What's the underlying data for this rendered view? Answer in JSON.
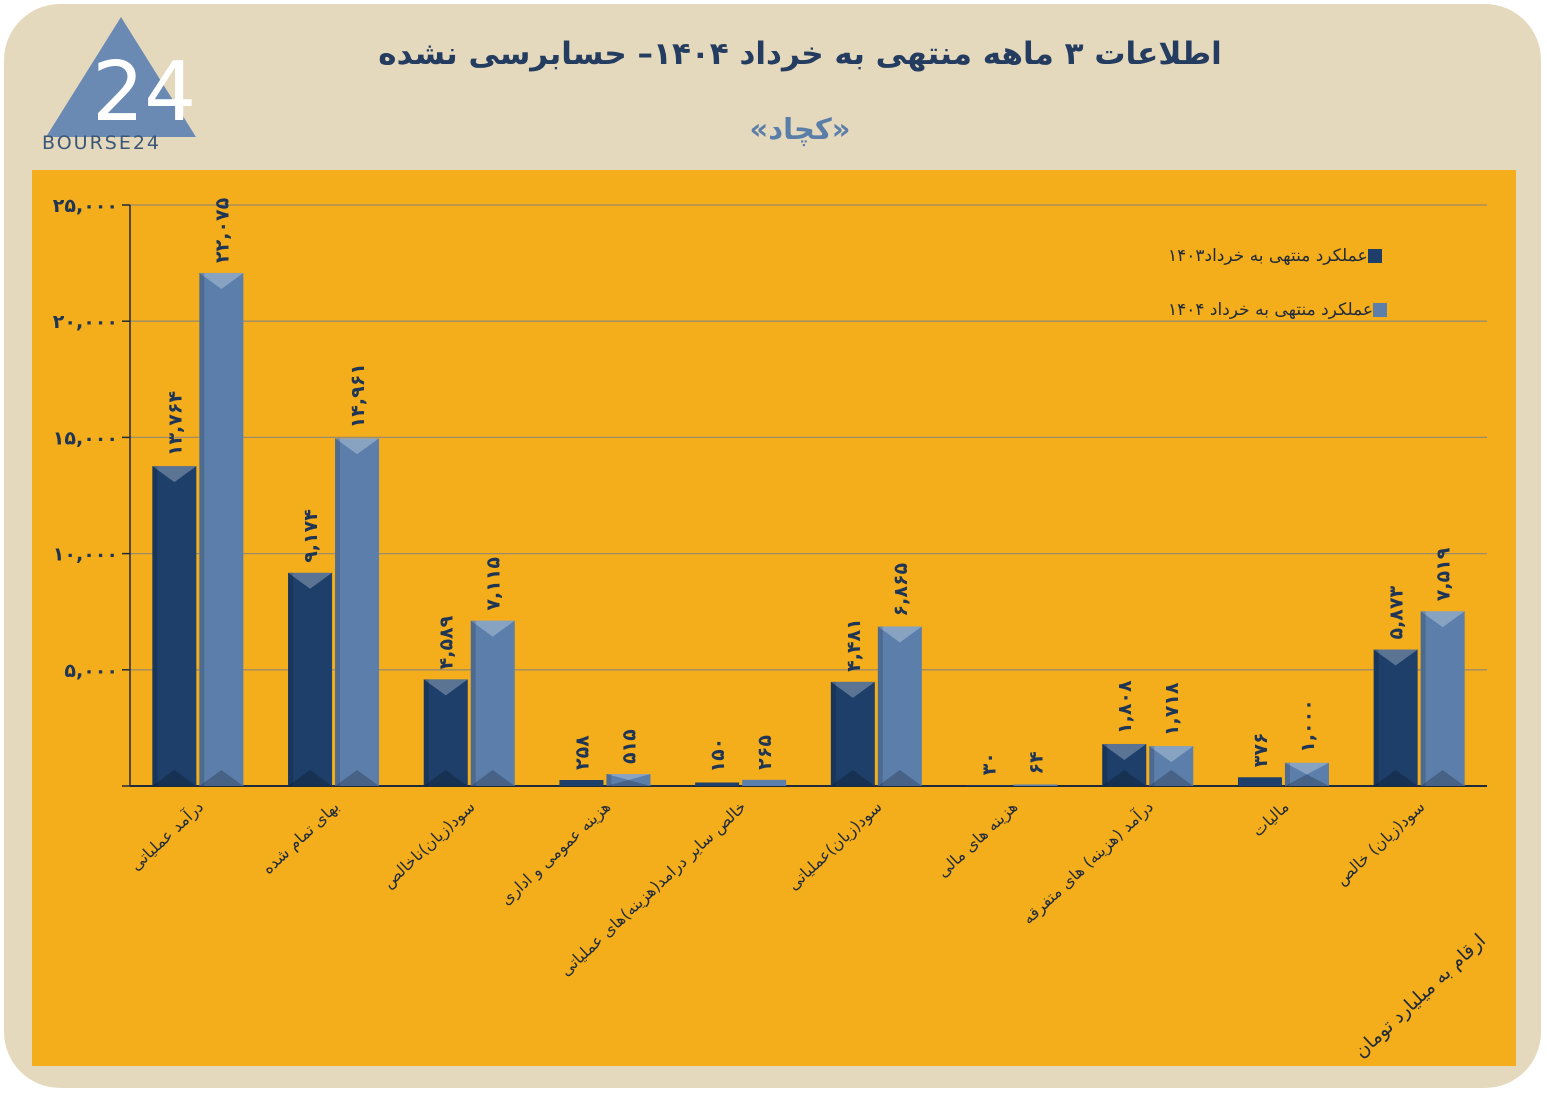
{
  "header": {
    "title": "اطلاعات ۳ ماهه منتهی به خرداد ۱۴۰۴– حسابرسی نشده",
    "subtitle": "«کچاد»",
    "logo_text": "BOURSE24",
    "logo_mark": "24"
  },
  "unit_note": "ارقام به میلیارد تومان",
  "colors": {
    "background": "#e5d9bd",
    "panel": "#f5ae1b",
    "series_1403": "#1d3f6a",
    "series_1404": "#5b7eab",
    "text": "#1f3555"
  },
  "chart_data": {
    "type": "bar",
    "title": "اطلاعات ۳ ماهه منتهی به خرداد ۱۴۰۴– حسابرسی نشده",
    "subtitle": "«کچاد»",
    "categories": [
      "درآمد عملیاتی",
      "بهای تمام شده",
      "سود(زیان)ناخالص",
      "هزینه عمومی و اداری",
      "خالص سایر درامد(هزینه)های عملیاتی",
      "سود(زیان)عملیاتی",
      "هزینه های مالی",
      "درآمد (هزینه) های متفرقه",
      "مالیات",
      "سود(زیان) خالص"
    ],
    "series": [
      {
        "name": "عملکرد منتهی به خرداد۱۴۰۳",
        "values": [
          13764,
          9174,
          4589,
          258,
          150,
          4481,
          30,
          1808,
          376,
          5873
        ],
        "labels": [
          "۱۳,۷۶۴",
          "۹,۱۷۴",
          "۴,۵۸۹",
          "۲۵۸",
          "۱۵۰",
          "۴,۴۸۱",
          "۳۰",
          "۱,۸۰۸",
          "۳۷۶",
          "۵,۸۷۳"
        ]
      },
      {
        "name": "عملکرد منتهی به خرداد ۱۴۰۴",
        "values": [
          22075,
          14961,
          7115,
          515,
          265,
          6865,
          64,
          1718,
          1000,
          7519
        ],
        "labels": [
          "۲۲,۰۷۵",
          "۱۴,۹۶۱",
          "۷,۱۱۵",
          "۵۱۵",
          "۲۶۵",
          "۶,۸۶۵",
          "۶۴",
          "۱,۷۱۸",
          "۱,۰۰۰",
          "۷,۵۱۹"
        ]
      }
    ],
    "yticks": [
      0,
      5000,
      10000,
      15000,
      20000,
      25000
    ],
    "ytick_labels": [
      "",
      "۵,۰۰۰",
      "۱۰,۰۰۰",
      "۱۵,۰۰۰",
      "۲۰,۰۰۰",
      "۲۵,۰۰۰"
    ],
    "ylim": [
      0,
      25000
    ],
    "grid": true,
    "legend_position": "top-right",
    "xlabel": "",
    "ylabel": ""
  }
}
